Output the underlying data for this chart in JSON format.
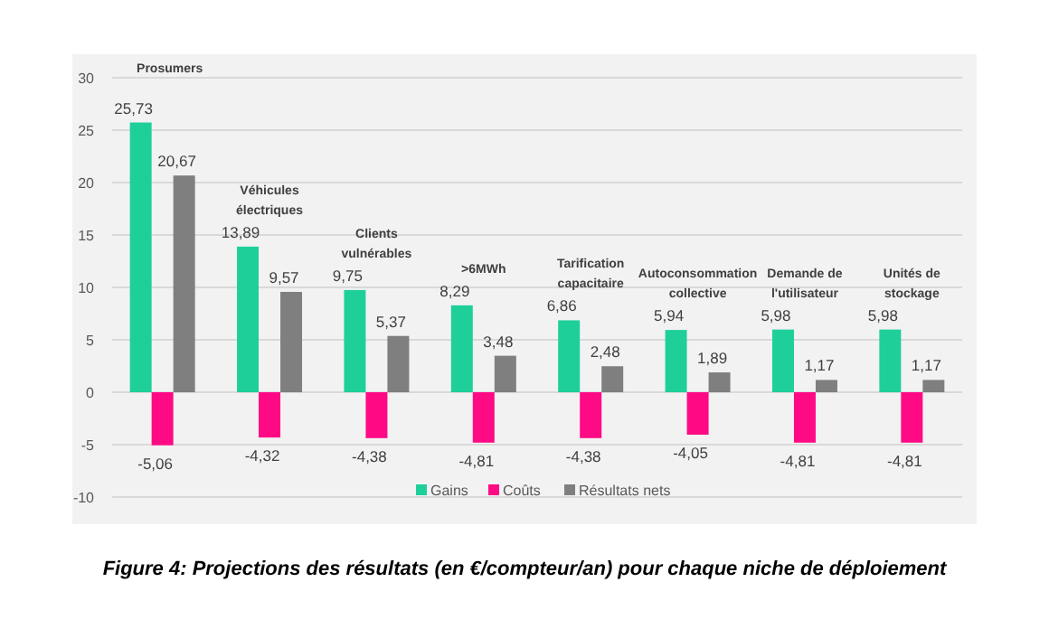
{
  "chart_data": {
    "type": "bar",
    "categories": [
      "Prosumers",
      "Véhicules\nélectriques",
      "Clients\nvulnérables",
      ">6MWh",
      "Tarification\ncapacitaire",
      "Autoconsommation\ncollective",
      "Demande de\nl'utilisateur",
      "Unités de\nstockage"
    ],
    "series": [
      {
        "name": "Gains",
        "color": "#1fcf9a",
        "values": [
          25.73,
          13.89,
          9.75,
          8.29,
          6.86,
          5.94,
          5.98,
          5.98
        ],
        "value_labels": [
          "25,73",
          "13,89",
          "9,75",
          "8,29",
          "6,86",
          "5,94",
          "5,98",
          "5,98"
        ]
      },
      {
        "name": "Coûts",
        "color": "#ff0a85",
        "values": [
          -5.06,
          -4.32,
          -4.38,
          -4.81,
          -4.38,
          -4.05,
          -4.81,
          -4.81
        ],
        "value_labels": [
          "-5,06",
          "-4,32",
          "-4,38",
          "-4,81",
          "-4,38",
          "-4,05",
          "-4,81",
          "-4,81"
        ]
      },
      {
        "name": "Résultats nets",
        "color": "#7f7f7f",
        "values": [
          20.67,
          9.57,
          5.37,
          3.48,
          2.48,
          1.89,
          1.17,
          1.17
        ],
        "value_labels": [
          "20,67",
          "9,57",
          "5,37",
          "3,48",
          "2,48",
          "1,89",
          "1,17",
          "1,17"
        ]
      }
    ],
    "ylim": [
      -10,
      30
    ],
    "yticks": [
      -10,
      -5,
      0,
      5,
      10,
      15,
      20,
      25,
      30
    ],
    "grid": "y",
    "legend": "bottom",
    "annotations": [
      "Figure 4: Projections des résultats (en €/compteur/an) pour chaque niche de déploiement"
    ]
  }
}
